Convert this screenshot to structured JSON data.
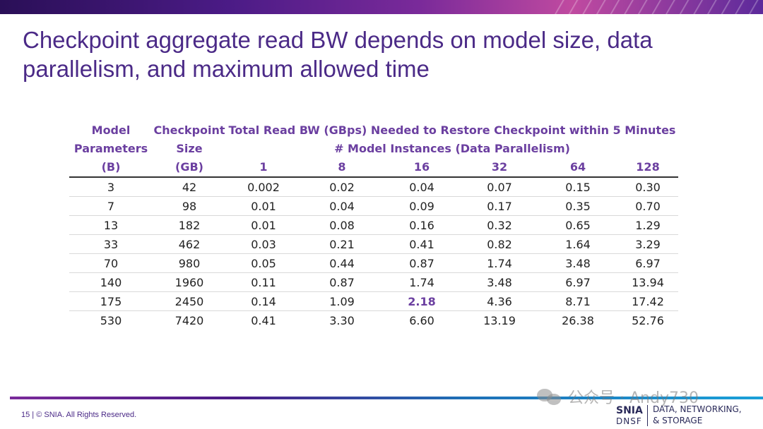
{
  "title": "Checkpoint aggregate read BW depends on model size, data parallelism, and maximum allowed time",
  "table": {
    "col_model_line1": "Model",
    "col_model_line2": "Parameters",
    "col_model_line3": "(B)",
    "col_ckpt_line1": "Checkpoint",
    "col_ckpt_line2": "Size",
    "col_ckpt_line3": "(GB)",
    "group_header_line1": "Total Read BW (GBps) Needed to Restore Checkpoint within 5 Minutes",
    "group_header_line2": "# Model Instances (Data Parallelism)",
    "instances": [
      "1",
      "8",
      "16",
      "32",
      "64",
      "128"
    ],
    "rows": [
      {
        "params": "3",
        "size": "42",
        "bw": [
          "0.002",
          "0.02",
          "0.04",
          "0.07",
          "0.15",
          "0.30"
        ]
      },
      {
        "params": "7",
        "size": "98",
        "bw": [
          "0.01",
          "0.04",
          "0.09",
          "0.17",
          "0.35",
          "0.70"
        ]
      },
      {
        "params": "13",
        "size": "182",
        "bw": [
          "0.01",
          "0.08",
          "0.16",
          "0.32",
          "0.65",
          "1.29"
        ]
      },
      {
        "params": "33",
        "size": "462",
        "bw": [
          "0.03",
          "0.21",
          "0.41",
          "0.82",
          "1.64",
          "3.29"
        ]
      },
      {
        "params": "70",
        "size": "980",
        "bw": [
          "0.05",
          "0.44",
          "0.87",
          "1.74",
          "3.48",
          "6.97"
        ]
      },
      {
        "params": "140",
        "size": "1960",
        "bw": [
          "0.11",
          "0.87",
          "1.74",
          "3.48",
          "6.97",
          "13.94"
        ]
      },
      {
        "params": "175",
        "size": "2450",
        "bw": [
          "0.14",
          "1.09",
          "2.18",
          "4.36",
          "8.71",
          "17.42"
        ]
      },
      {
        "params": "530",
        "size": "7420",
        "bw": [
          "0.41",
          "3.30",
          "6.60",
          "13.19",
          "26.38",
          "52.76"
        ]
      }
    ],
    "highlight_color": "#6b3fa0"
  },
  "footer": "15 | © SNIA. All Rights Reserved.",
  "logo": {
    "name": "SNIA",
    "sub": "DNSF",
    "tagline1": "DATA, NETWORKING,",
    "tagline2": "& STORAGE"
  },
  "watermark": "公众号 · Andy730",
  "colors": {
    "title": "#4b2a87",
    "header": "#6b3fa0"
  }
}
